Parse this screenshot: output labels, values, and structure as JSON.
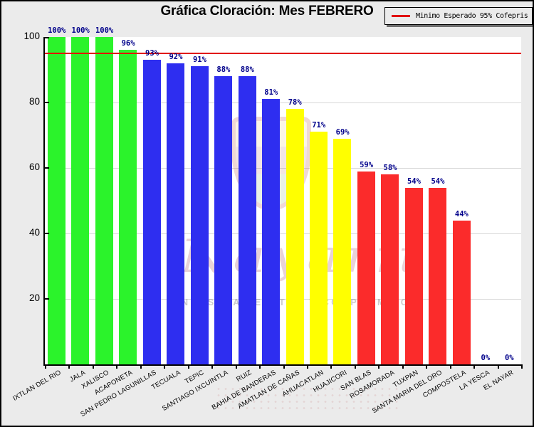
{
  "title": "Gráfica Cloración: Mes FEBRERO",
  "legend": {
    "label": "Minimo Esperado 95% Cofepris",
    "line_color": "#e10000",
    "position": "top-right"
  },
  "watermark": {
    "script_text": "Nayarit",
    "tagline": "NUESTRA LEALTAD Y COMPROMISO",
    "crest": "coat-of-arms-icon"
  },
  "chart_data": {
    "type": "bar",
    "title": "Gráfica Cloración: Mes FEBRERO",
    "categories": [
      "IXTLAN DEL RIO",
      "JALA",
      "XALISCO",
      "ACAPONETA",
      "SAN PEDRO LAGUNILLAS",
      "TECUALA",
      "TEPIC",
      "SANTIAGO IXCUINTLA",
      "RUIZ",
      "BAHIA DE BANDERAS",
      "AMATLAN DE CAÑAS",
      "AHUACATLAN",
      "HUAJICORI",
      "SAN BLAS",
      "ROSAMORADA",
      "TUXPAN",
      "SANTA MARIA DEL ORO",
      "COMPOSTELA",
      "LA YESCA",
      "EL NAYAR"
    ],
    "values": [
      100,
      100,
      100,
      96,
      93,
      92,
      91,
      88,
      88,
      81,
      78,
      71,
      69,
      59,
      58,
      54,
      54,
      44,
      0,
      0
    ],
    "value_labels": [
      "100%",
      "100%",
      "100%",
      "96%",
      "93%",
      "92%",
      "91%",
      "88%",
      "88%",
      "81%",
      "78%",
      "71%",
      "69%",
      "59%",
      "58%",
      "54%",
      "54%",
      "44%",
      "0%",
      "0%"
    ],
    "bar_colors": [
      "#2bf32b",
      "#2bf32b",
      "#2bf32b",
      "#2bf32b",
      "#2e2ef0",
      "#2e2ef0",
      "#2e2ef0",
      "#2e2ef0",
      "#2e2ef0",
      "#2e2ef0",
      "#ffff00",
      "#ffff00",
      "#ffff00",
      "#fb2b2b",
      "#fb2b2b",
      "#fb2b2b",
      "#fb2b2b",
      "#fb2b2b",
      "#fb2b2b",
      "#fb2b2b"
    ],
    "xlabel": "",
    "ylabel": "",
    "ylim": [
      0,
      100
    ],
    "yticks": [
      20,
      40,
      60,
      80,
      100
    ],
    "grid": true,
    "gridline_color": "#d8d8d8",
    "plot_background": "#ffffff",
    "page_background": "#ebebeb",
    "value_label_color": "#00008b",
    "threshold": {
      "value": 95,
      "color": "#e10000",
      "label": "Minimo Esperado 95% Cofepris"
    },
    "legend_position": "top-right"
  }
}
